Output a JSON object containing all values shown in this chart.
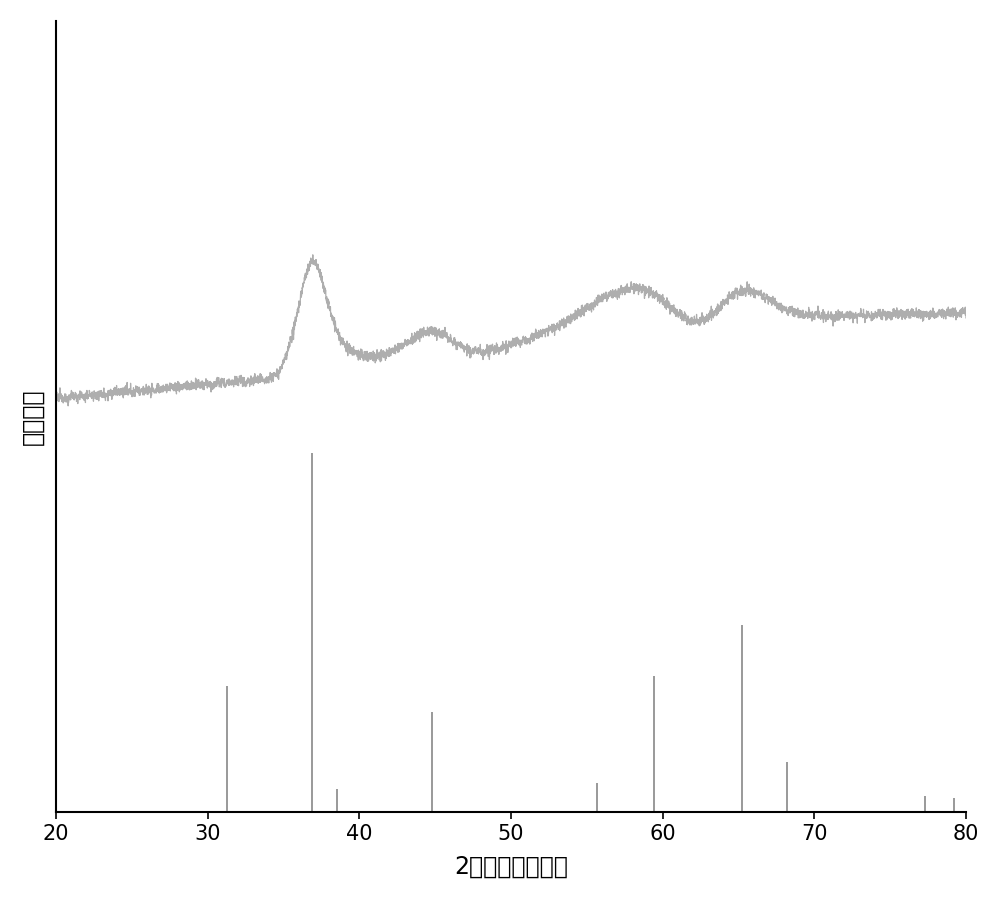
{
  "xmin": 20,
  "xmax": 80,
  "xlabel": "2倍入射角（度）",
  "ylabel": "衍射强度",
  "curve_color": "#aaaaaa",
  "stick_color": "#888888",
  "background_color": "#ffffff",
  "xticks": [
    20,
    30,
    40,
    50,
    60,
    70,
    80
  ],
  "stick_positions": [
    31.3,
    36.85,
    38.5,
    44.8,
    55.7,
    59.4,
    65.2,
    68.2,
    77.3,
    79.2
  ],
  "stick_heights": [
    0.35,
    1.0,
    0.065,
    0.28,
    0.08,
    0.38,
    0.52,
    0.14,
    0.045,
    0.04
  ],
  "ylim_min": 0.0,
  "ylim_max": 2.2,
  "curve_y_offset": 1.15,
  "curve_scale": 0.38,
  "stick_top": 1.0,
  "noise_amp": 0.018,
  "noise_corr": 0.8
}
